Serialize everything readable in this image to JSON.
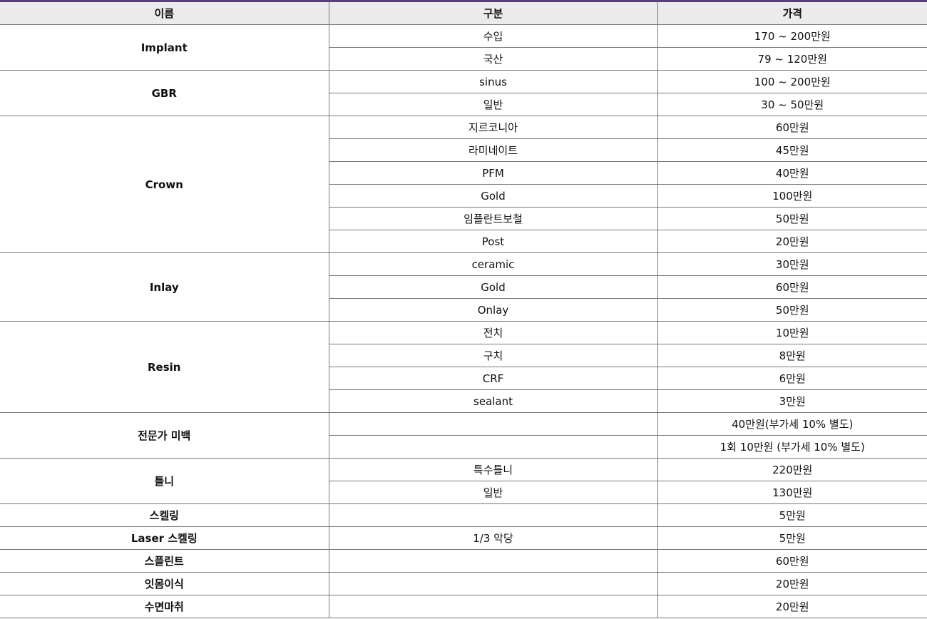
{
  "accent_color": "#5b3a87",
  "headers": {
    "name": "이름",
    "type": "구분",
    "price": "가격"
  },
  "groups": [
    {
      "name": "Implant",
      "items": [
        {
          "type": "수입",
          "price": "170 ~ 200만원"
        },
        {
          "type": "국산",
          "price": "79 ~ 120만원"
        }
      ]
    },
    {
      "name": "GBR",
      "items": [
        {
          "type": "sinus",
          "price": "100 ~ 200만원"
        },
        {
          "type": "일반",
          "price": "30 ~ 50만원"
        }
      ]
    },
    {
      "name": "Crown",
      "items": [
        {
          "type": "지르코니아",
          "price": "60만원"
        },
        {
          "type": "라미네이트",
          "price": "45만원"
        },
        {
          "type": "PFM",
          "price": "40만원"
        },
        {
          "type": "Gold",
          "price": "100만원"
        },
        {
          "type": "임플란트보철",
          "price": "50만원"
        },
        {
          "type": "Post",
          "price": "20만원"
        }
      ]
    },
    {
      "name": "Inlay",
      "items": [
        {
          "type": "ceramic",
          "price": "30만원"
        },
        {
          "type": "Gold",
          "price": "60만원"
        },
        {
          "type": "Onlay",
          "price": "50만원"
        }
      ]
    },
    {
      "name": "Resin",
      "items": [
        {
          "type": "전치",
          "price": "10만원"
        },
        {
          "type": "구치",
          "price": "8만원"
        },
        {
          "type": "CRF",
          "price": "6만원"
        },
        {
          "type": "sealant",
          "price": "3만원"
        }
      ]
    },
    {
      "name": "전문가 미백",
      "items": [
        {
          "type": "",
          "price": "40만원(부가세 10% 별도)"
        },
        {
          "type": "",
          "price": "1회 10만원 (부가세 10% 별도)"
        }
      ]
    },
    {
      "name": "틀니",
      "items": [
        {
          "type": "특수틀니",
          "price": "220만원"
        },
        {
          "type": "일반",
          "price": "130만원"
        }
      ]
    },
    {
      "name": "스켈링",
      "items": [
        {
          "type": "",
          "price": "5만원"
        }
      ]
    },
    {
      "name": "Laser 스켈링",
      "items": [
        {
          "type": "1/3 악당",
          "price": "5만원"
        }
      ]
    },
    {
      "name": "스플린트",
      "items": [
        {
          "type": "",
          "price": "60만원"
        }
      ]
    },
    {
      "name": "잇몸이식",
      "items": [
        {
          "type": "",
          "price": "20만원"
        }
      ]
    },
    {
      "name": "수면마취",
      "items": [
        {
          "type": "",
          "price": "20만원"
        }
      ]
    }
  ]
}
